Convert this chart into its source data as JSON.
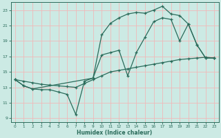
{
  "bg_color": "#cceae4",
  "grid_color": "#f0b8b8",
  "line_color": "#2a6b5a",
  "xlabel": "Humidex (Indice chaleur)",
  "xlim": [
    -0.5,
    23.5
  ],
  "ylim": [
    8.5,
    24.0
  ],
  "yticks": [
    9,
    11,
    13,
    15,
    17,
    19,
    21,
    23
  ],
  "xticks": [
    0,
    1,
    2,
    3,
    4,
    5,
    6,
    7,
    8,
    9,
    10,
    11,
    12,
    13,
    14,
    15,
    16,
    17,
    18,
    19,
    20,
    21,
    22,
    23
  ],
  "series1_x": [
    0,
    1,
    2,
    3,
    4,
    5,
    6,
    7,
    8,
    9,
    10,
    11,
    12,
    13,
    14,
    15,
    16,
    17,
    18,
    19,
    20,
    21,
    22,
    23
  ],
  "series1_y": [
    14.0,
    13.8,
    13.6,
    13.4,
    13.3,
    13.2,
    13.1,
    13.0,
    13.5,
    14.0,
    14.5,
    15.0,
    15.2,
    15.4,
    15.6,
    15.8,
    16.0,
    16.2,
    16.4,
    16.6,
    16.7,
    16.8,
    16.9,
    16.8
  ],
  "series2_x": [
    0,
    1,
    2,
    3,
    4,
    5,
    6,
    7,
    8,
    9,
    10,
    11,
    12,
    13,
    14,
    15,
    16,
    17,
    18,
    19,
    20,
    21,
    22,
    23
  ],
  "series2_y": [
    14.0,
    13.2,
    12.8,
    12.7,
    12.7,
    12.4,
    12.1,
    9.5,
    13.8,
    14.2,
    17.2,
    17.5,
    17.8,
    14.5,
    17.5,
    19.5,
    21.5,
    22.0,
    21.8,
    19.0,
    21.2,
    18.5,
    16.8,
    16.8
  ],
  "series3_x": [
    0,
    1,
    2,
    9,
    10,
    11,
    12,
    13,
    14,
    15,
    16,
    17,
    18,
    19,
    20,
    21,
    22,
    23
  ],
  "series3_y": [
    14.0,
    13.2,
    12.8,
    14.2,
    19.8,
    21.3,
    22.0,
    22.5,
    22.7,
    22.6,
    23.0,
    23.5,
    22.5,
    22.3,
    21.2,
    18.5,
    16.8,
    16.8
  ]
}
